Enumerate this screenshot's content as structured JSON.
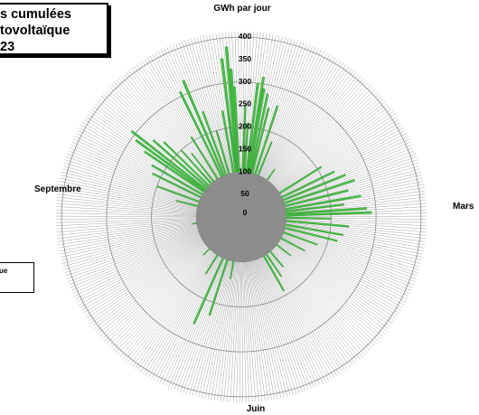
{
  "title_lines": [
    "s cumulées",
    "tovoltaïque",
    "23"
  ],
  "legend": {
    "text": "ue"
  },
  "chart_data": {
    "type": "polar-bar",
    "ylabel": "GWh par jour",
    "rlim": [
      0,
      400
    ],
    "r_ticks": [
      "0",
      "50",
      "100",
      "150",
      "200",
      "250",
      "300",
      "350",
      "400"
    ],
    "direction_labels": {
      "top": "",
      "right": "Mars",
      "bottom": "Juin",
      "left": "Septembre"
    },
    "center_fill": "#8c8c8c",
    "bar_color": "#44c044",
    "grid_color": "#a6a6a6",
    "bars": [
      {
        "angle": -7,
        "value": 355
      },
      {
        "angle": -5,
        "value": 380
      },
      {
        "angle": -4,
        "value": 330
      },
      {
        "angle": -3,
        "value": 290
      },
      {
        "angle": 2,
        "value": 250
      },
      {
        "angle": 4,
        "value": 210
      },
      {
        "angle": 7,
        "value": 300
      },
      {
        "angle": 9,
        "value": 315
      },
      {
        "angle": 10,
        "value": 290
      },
      {
        "angle": 12,
        "value": 280
      },
      {
        "angle": 14,
        "value": 250
      },
      {
        "angle": 18,
        "value": 260
      },
      {
        "angle": 22,
        "value": 180
      },
      {
        "angle": 35,
        "value": 130
      },
      {
        "angle": 58,
        "value": 210
      },
      {
        "angle": 64,
        "value": 230
      },
      {
        "angle": 68,
        "value": 250
      },
      {
        "angle": 72,
        "value": 265
      },
      {
        "angle": 76,
        "value": 245
      },
      {
        "angle": 80,
        "value": 270
      },
      {
        "angle": 83,
        "value": 230
      },
      {
        "angle": 86,
        "value": 280
      },
      {
        "angle": 88,
        "value": 290
      },
      {
        "angle": 91,
        "value": 200
      },
      {
        "angle": 95,
        "value": 240
      },
      {
        "angle": 100,
        "value": 230
      },
      {
        "angle": 104,
        "value": 220
      },
      {
        "angle": 110,
        "value": 180
      },
      {
        "angle": 118,
        "value": 160
      },
      {
        "angle": 128,
        "value": 140
      },
      {
        "angle": 140,
        "value": 145
      },
      {
        "angle": 146,
        "value": 160
      },
      {
        "angle": 150,
        "value": 190
      },
      {
        "angle": 160,
        "value": 100
      },
      {
        "angle": 190,
        "value": 140
      },
      {
        "angle": 198,
        "value": 230
      },
      {
        "angle": 204,
        "value": 260
      },
      {
        "angle": 212,
        "value": 150
      },
      {
        "angle": 225,
        "value": 120
      },
      {
        "angle": 245,
        "value": 100
      },
      {
        "angle": 262,
        "value": 110
      },
      {
        "angle": 284,
        "value": 150
      },
      {
        "angle": 290,
        "value": 200
      },
      {
        "angle": 296,
        "value": 220
      },
      {
        "angle": 300,
        "value": 230
      },
      {
        "angle": 304,
        "value": 260
      },
      {
        "angle": 306,
        "value": 290
      },
      {
        "angle": 308,
        "value": 310
      },
      {
        "angle": 311,
        "value": 260
      },
      {
        "angle": 314,
        "value": 240
      },
      {
        "angle": 318,
        "value": 200
      },
      {
        "angle": 322,
        "value": 180
      },
      {
        "angle": 328,
        "value": 210
      },
      {
        "angle": 334,
        "value": 310
      },
      {
        "angle": 337,
        "value": 330
      },
      {
        "angle": 340,
        "value": 250
      },
      {
        "angle": 344,
        "value": 200
      },
      {
        "angle": 350,
        "value": 240
      },
      {
        "angle": 353,
        "value": 230
      }
    ]
  }
}
